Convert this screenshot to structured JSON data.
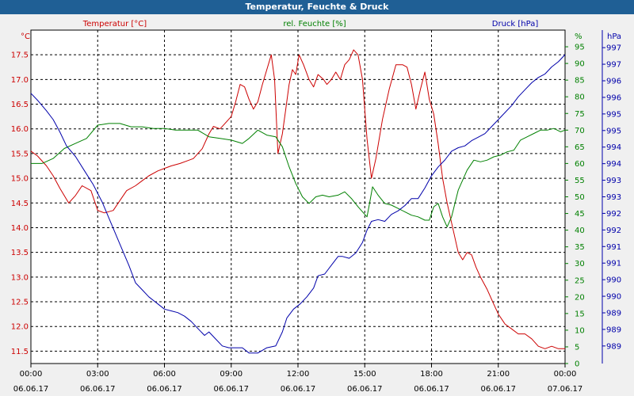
{
  "window": {
    "title": "Temperatur, Feuchte & Druck"
  },
  "chart_data": {
    "type": "line",
    "title": "Temperatur, Feuchte & Druck",
    "grid": true,
    "colors": {
      "temperature": "#cc0000",
      "humidity": "#008000",
      "pressure": "#0000aa"
    },
    "x_ticks": [
      {
        "time": "00:00",
        "date": "06.06.17"
      },
      {
        "time": "03:00",
        "date": "06.06.17"
      },
      {
        "time": "06:00",
        "date": "06.06.17"
      },
      {
        "time": "09:00",
        "date": "06.06.17"
      },
      {
        "time": "12:00",
        "date": "06.06.17"
      },
      {
        "time": "15:00",
        "date": "06.06.17"
      },
      {
        "time": "18:00",
        "date": "06.06.17"
      },
      {
        "time": "21:00",
        "date": "06.06.17"
      },
      {
        "time": "00:00",
        "date": "07.06.17"
      }
    ],
    "axes": {
      "left": {
        "label": "Temperatur [°C]",
        "unit": "°C",
        "min": 11.25,
        "max": 18.0,
        "ticks": [
          "11.5",
          "12.0",
          "12.5",
          "13.0",
          "13.5",
          "14.0",
          "14.5",
          "15.0",
          "15.5",
          "16.0",
          "16.5",
          "17.0",
          "17.5"
        ]
      },
      "mid": {
        "label": "rel. Feuchte [%]",
        "unit": "%",
        "min": 0,
        "max": 100,
        "ticks": [
          "0",
          "5",
          "10",
          "15",
          "20",
          "25",
          "30",
          "35",
          "40",
          "45",
          "50",
          "55",
          "60",
          "65",
          "70",
          "75",
          "80",
          "85",
          "90",
          "95"
        ]
      },
      "right": {
        "label": "Druck [hPa]",
        "unit": "hPa",
        "min": 988.5,
        "max": 998.0,
        "ticks": [
          "989",
          "989",
          "989",
          "990",
          "990",
          "991",
          "991",
          "992",
          "992",
          "993",
          "993",
          "994",
          "994",
          "995",
          "995",
          "996",
          "996",
          "997",
          "997"
        ]
      }
    },
    "series": [
      {
        "name": "Temperatur [°C]",
        "axis": "left",
        "points": [
          [
            0.0,
            15.55
          ],
          [
            0.3,
            15.45
          ],
          [
            0.7,
            15.25
          ],
          [
            1.0,
            15.05
          ],
          [
            1.3,
            14.8
          ],
          [
            1.7,
            14.5
          ],
          [
            2.0,
            14.65
          ],
          [
            2.3,
            14.85
          ],
          [
            2.7,
            14.75
          ],
          [
            3.0,
            14.35
          ],
          [
            3.3,
            14.3
          ],
          [
            3.7,
            14.35
          ],
          [
            4.0,
            14.55
          ],
          [
            4.3,
            14.75
          ],
          [
            4.7,
            14.85
          ],
          [
            5.0,
            14.95
          ],
          [
            5.3,
            15.05
          ],
          [
            5.7,
            15.15
          ],
          [
            6.0,
            15.2
          ],
          [
            6.3,
            15.25
          ],
          [
            6.7,
            15.3
          ],
          [
            7.0,
            15.35
          ],
          [
            7.3,
            15.4
          ],
          [
            7.7,
            15.6
          ],
          [
            8.0,
            15.9
          ],
          [
            8.2,
            16.05
          ],
          [
            8.5,
            16.0
          ],
          [
            8.8,
            16.15
          ],
          [
            9.0,
            16.25
          ],
          [
            9.2,
            16.55
          ],
          [
            9.4,
            16.9
          ],
          [
            9.6,
            16.85
          ],
          [
            9.8,
            16.6
          ],
          [
            10.0,
            16.4
          ],
          [
            10.2,
            16.55
          ],
          [
            10.4,
            16.9
          ],
          [
            10.6,
            17.2
          ],
          [
            10.8,
            17.5
          ],
          [
            10.95,
            17.0
          ],
          [
            11.1,
            15.5
          ],
          [
            11.3,
            15.9
          ],
          [
            11.45,
            16.4
          ],
          [
            11.6,
            16.9
          ],
          [
            11.75,
            17.2
          ],
          [
            11.9,
            17.1
          ],
          [
            12.05,
            17.5
          ],
          [
            12.25,
            17.3
          ],
          [
            12.5,
            17.0
          ],
          [
            12.7,
            16.85
          ],
          [
            12.9,
            17.1
          ],
          [
            13.15,
            17.0
          ],
          [
            13.3,
            16.9
          ],
          [
            13.5,
            17.0
          ],
          [
            13.7,
            17.15
          ],
          [
            13.9,
            17.0
          ],
          [
            14.1,
            17.3
          ],
          [
            14.3,
            17.4
          ],
          [
            14.5,
            17.6
          ],
          [
            14.7,
            17.5
          ],
          [
            14.9,
            17.0
          ],
          [
            15.1,
            15.8
          ],
          [
            15.3,
            15.0
          ],
          [
            15.5,
            15.4
          ],
          [
            15.8,
            16.2
          ],
          [
            16.1,
            16.8
          ],
          [
            16.4,
            17.3
          ],
          [
            16.7,
            17.3
          ],
          [
            16.9,
            17.25
          ],
          [
            17.1,
            16.9
          ],
          [
            17.3,
            16.4
          ],
          [
            17.5,
            16.8
          ],
          [
            17.7,
            17.15
          ],
          [
            17.9,
            16.6
          ],
          [
            18.1,
            16.3
          ],
          [
            18.3,
            15.7
          ],
          [
            18.5,
            15.0
          ],
          [
            18.7,
            14.5
          ],
          [
            19.0,
            13.9
          ],
          [
            19.2,
            13.5
          ],
          [
            19.4,
            13.35
          ],
          [
            19.6,
            13.5
          ],
          [
            19.8,
            13.45
          ],
          [
            20.0,
            13.2
          ],
          [
            20.2,
            13.0
          ],
          [
            20.5,
            12.75
          ],
          [
            20.8,
            12.45
          ],
          [
            21.0,
            12.25
          ],
          [
            21.3,
            12.05
          ],
          [
            21.6,
            11.95
          ],
          [
            21.9,
            11.85
          ],
          [
            22.2,
            11.85
          ],
          [
            22.5,
            11.75
          ],
          [
            22.8,
            11.6
          ],
          [
            23.1,
            11.55
          ],
          [
            23.4,
            11.6
          ],
          [
            23.7,
            11.55
          ],
          [
            24.0,
            11.55
          ]
        ]
      },
      {
        "name": "rel. Feuchte [%]",
        "axis": "mid",
        "points": [
          [
            0.0,
            60
          ],
          [
            0.5,
            60
          ],
          [
            1.0,
            61.5
          ],
          [
            1.5,
            64.5
          ],
          [
            2.0,
            66
          ],
          [
            2.5,
            67.5
          ],
          [
            3.0,
            71.5
          ],
          [
            3.5,
            72
          ],
          [
            4.0,
            72
          ],
          [
            4.5,
            71
          ],
          [
            5.0,
            71
          ],
          [
            5.5,
            70.5
          ],
          [
            6.0,
            70.5
          ],
          [
            6.5,
            70
          ],
          [
            7.0,
            70
          ],
          [
            7.5,
            70
          ],
          [
            8.0,
            68
          ],
          [
            8.5,
            67.5
          ],
          [
            9.0,
            67
          ],
          [
            9.5,
            66
          ],
          [
            9.8,
            67.5
          ],
          [
            10.2,
            70
          ],
          [
            10.6,
            68.5
          ],
          [
            11.0,
            68
          ],
          [
            11.3,
            65
          ],
          [
            11.6,
            59
          ],
          [
            11.9,
            54
          ],
          [
            12.2,
            50
          ],
          [
            12.5,
            48
          ],
          [
            12.8,
            50
          ],
          [
            13.1,
            50.5
          ],
          [
            13.4,
            50
          ],
          [
            13.8,
            50.5
          ],
          [
            14.1,
            51.5
          ],
          [
            14.4,
            49.5
          ],
          [
            14.7,
            47
          ],
          [
            14.9,
            45.5
          ],
          [
            15.1,
            44
          ],
          [
            15.2,
            47.5
          ],
          [
            15.35,
            53
          ],
          [
            15.6,
            50.5
          ],
          [
            15.9,
            48
          ],
          [
            16.2,
            47.5
          ],
          [
            16.5,
            46.5
          ],
          [
            16.8,
            45.5
          ],
          [
            17.1,
            44.5
          ],
          [
            17.4,
            44
          ],
          [
            17.7,
            43
          ],
          [
            17.9,
            43
          ],
          [
            18.1,
            47
          ],
          [
            18.3,
            48
          ],
          [
            18.5,
            44
          ],
          [
            18.7,
            41
          ],
          [
            18.9,
            44
          ],
          [
            19.2,
            52
          ],
          [
            19.6,
            58
          ],
          [
            19.9,
            61
          ],
          [
            20.2,
            60.5
          ],
          [
            20.5,
            61
          ],
          [
            20.8,
            62
          ],
          [
            21.1,
            62.5
          ],
          [
            21.4,
            63.5
          ],
          [
            21.7,
            64
          ],
          [
            22.0,
            67
          ],
          [
            22.3,
            68
          ],
          [
            22.6,
            69
          ],
          [
            22.9,
            70
          ],
          [
            23.2,
            70
          ],
          [
            23.5,
            70.5
          ],
          [
            23.8,
            69.5
          ],
          [
            24.0,
            70
          ]
        ]
      },
      {
        "name": "Druck [hPa]",
        "axis": "right",
        "points": [
          [
            0.0,
            996.2
          ],
          [
            0.3,
            996.0
          ],
          [
            0.7,
            995.7
          ],
          [
            1.0,
            995.45
          ],
          [
            1.3,
            995.1
          ],
          [
            1.6,
            994.7
          ],
          [
            2.0,
            994.4
          ],
          [
            2.4,
            994.0
          ],
          [
            2.8,
            993.6
          ],
          [
            3.2,
            993.1
          ],
          [
            3.6,
            992.5
          ],
          [
            4.0,
            991.9
          ],
          [
            4.4,
            991.3
          ],
          [
            4.7,
            990.8
          ],
          [
            5.0,
            990.6
          ],
          [
            5.3,
            990.4
          ],
          [
            5.7,
            990.2
          ],
          [
            6.0,
            990.05
          ],
          [
            6.3,
            990.0
          ],
          [
            6.6,
            989.95
          ],
          [
            6.9,
            989.85
          ],
          [
            7.2,
            989.7
          ],
          [
            7.5,
            989.5
          ],
          [
            7.8,
            989.3
          ],
          [
            8.0,
            989.4
          ],
          [
            8.3,
            989.2
          ],
          [
            8.6,
            989.0
          ],
          [
            8.9,
            988.95
          ],
          [
            9.2,
            988.95
          ],
          [
            9.5,
            988.95
          ],
          [
            9.8,
            988.8
          ],
          [
            10.2,
            988.8
          ],
          [
            10.6,
            988.95
          ],
          [
            11.0,
            989.0
          ],
          [
            11.3,
            989.4
          ],
          [
            11.5,
            989.8
          ],
          [
            11.8,
            990.05
          ],
          [
            12.1,
            990.2
          ],
          [
            12.4,
            990.4
          ],
          [
            12.7,
            990.65
          ],
          [
            12.9,
            991.0
          ],
          [
            13.2,
            991.05
          ],
          [
            13.5,
            991.3
          ],
          [
            13.8,
            991.55
          ],
          [
            14.0,
            991.55
          ],
          [
            14.3,
            991.5
          ],
          [
            14.6,
            991.65
          ],
          [
            14.9,
            991.95
          ],
          [
            15.1,
            992.3
          ],
          [
            15.3,
            992.55
          ],
          [
            15.6,
            992.6
          ],
          [
            15.9,
            992.55
          ],
          [
            16.2,
            992.75
          ],
          [
            16.5,
            992.85
          ],
          [
            16.8,
            993.0
          ],
          [
            17.1,
            993.2
          ],
          [
            17.4,
            993.2
          ],
          [
            17.7,
            993.5
          ],
          [
            18.0,
            993.85
          ],
          [
            18.3,
            994.1
          ],
          [
            18.6,
            994.3
          ],
          [
            18.9,
            994.55
          ],
          [
            19.2,
            994.65
          ],
          [
            19.5,
            994.7
          ],
          [
            19.8,
            994.85
          ],
          [
            20.1,
            994.95
          ],
          [
            20.4,
            995.05
          ],
          [
            20.7,
            995.25
          ],
          [
            21.0,
            995.45
          ],
          [
            21.3,
            995.65
          ],
          [
            21.6,
            995.85
          ],
          [
            21.9,
            996.1
          ],
          [
            22.2,
            996.3
          ],
          [
            22.5,
            996.5
          ],
          [
            22.8,
            996.65
          ],
          [
            23.1,
            996.75
          ],
          [
            23.4,
            996.95
          ],
          [
            23.7,
            997.1
          ],
          [
            24.0,
            997.3
          ]
        ]
      }
    ]
  }
}
